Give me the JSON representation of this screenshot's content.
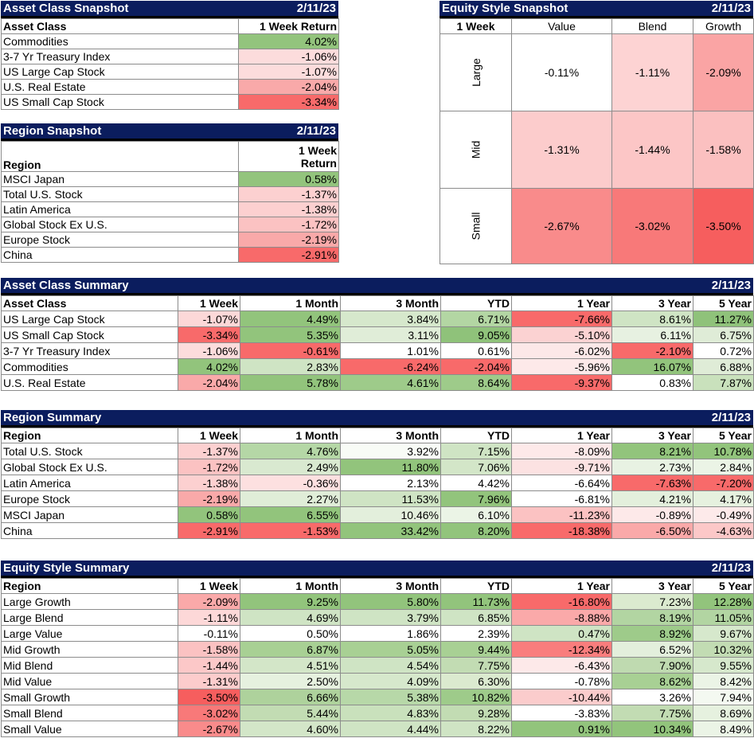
{
  "asset_snapshot": {
    "title": "Asset Class Snapshot",
    "date": "2/11/23",
    "col1": "Asset Class",
    "col2": "1 Week Return",
    "rows": [
      {
        "name": "Commodities",
        "value": "4.02%",
        "color": "#93c47d"
      },
      {
        "name": "3-7 Yr Treasury Index",
        "value": "-1.06%",
        "color": "#fcdcdc"
      },
      {
        "name": "US Large Cap Stock",
        "value": "-1.07%",
        "color": "#fcdcdc"
      },
      {
        "name": "U.S. Real Estate",
        "value": "-2.04%",
        "color": "#f9a9a9"
      },
      {
        "name": "US Small Cap Stock",
        "value": "-3.34%",
        "color": "#f86a6a"
      }
    ]
  },
  "region_snapshot": {
    "title": "Region Snapshot",
    "date": "2/11/23",
    "col1": "Region",
    "col2a": "1 Week",
    "col2b": "Return",
    "rows": [
      {
        "name": "MSCI Japan",
        "value": "0.58%",
        "color": "#93c47d"
      },
      {
        "name": "Total U.S. Stock",
        "value": "-1.37%",
        "color": "#fcd0d0"
      },
      {
        "name": "Latin America",
        "value": "-1.38%",
        "color": "#fcd0d0"
      },
      {
        "name": "Global Stock Ex U.S.",
        "value": "-1.72%",
        "color": "#fbc2c2"
      },
      {
        "name": "Europe Stock",
        "value": "-2.19%",
        "color": "#f9a9a9"
      },
      {
        "name": "China",
        "value": "-2.91%",
        "color": "#f86a6a"
      }
    ]
  },
  "equity_snapshot": {
    "title": "Equity Style Snapshot",
    "date": "2/11/23",
    "corner": "1 Week",
    "cols": [
      "Value",
      "Blend",
      "Growth"
    ],
    "rows": [
      {
        "label": "Large",
        "cells": [
          {
            "v": "-0.11%",
            "c": "#ffffff"
          },
          {
            "v": "-1.11%",
            "c": "#fdd3d3"
          },
          {
            "v": "-2.09%",
            "c": "#faa4a4"
          }
        ]
      },
      {
        "label": "Mid",
        "cells": [
          {
            "v": "-1.31%",
            "c": "#fccccc"
          },
          {
            "v": "-1.44%",
            "c": "#fcc6c6"
          },
          {
            "v": "-1.58%",
            "c": "#fbc0c0"
          }
        ]
      },
      {
        "label": "Small",
        "cells": [
          {
            "v": "-2.67%",
            "c": "#f98b8b"
          },
          {
            "v": "-3.02%",
            "c": "#f87979"
          },
          {
            "v": "-3.50%",
            "c": "#f65e5e"
          }
        ]
      }
    ]
  },
  "asset_summary": {
    "title": "Asset Class Summary",
    "date": "2/11/23",
    "headers": [
      "Asset Class",
      "1 Week",
      "1 Month",
      "3 Month",
      "YTD",
      "1 Year",
      "3 Year",
      "5 Year"
    ],
    "rows": [
      {
        "name": "US Large Cap Stock",
        "vals": [
          "-1.07%",
          "4.49%",
          "3.84%",
          "6.71%",
          "-7.66%",
          "8.61%",
          "11.27%"
        ],
        "colors": [
          "#fcd8d8",
          "#92c47c",
          "#d6e8cc",
          "#b3d6a3",
          "#f86a6a",
          "#cfe4c4",
          "#8fc27a"
        ]
      },
      {
        "name": "US Small Cap Stock",
        "vals": [
          "-3.34%",
          "5.35%",
          "3.11%",
          "9.05%",
          "-5.10%",
          "6.11%",
          "6.75%"
        ],
        "colors": [
          "#f86a6a",
          "#92c47c",
          "#e0edd8",
          "#8fc27a",
          "#fbd2d2",
          "#e7f1e1",
          "#dfecd7"
        ]
      },
      {
        "name": "3-7 Yr Treasury Index",
        "vals": [
          "-1.06%",
          "-0.61%",
          "1.01%",
          "0.61%",
          "-6.02%",
          "-2.10%",
          "0.72%"
        ],
        "colors": [
          "#fcdcdc",
          "#f86a6a",
          "#ffffff",
          "#ffffff",
          "#fce8e8",
          "#f86a6a",
          "#ffffff"
        ]
      },
      {
        "name": "Commodities",
        "vals": [
          "4.02%",
          "2.83%",
          "-6.24%",
          "-2.04%",
          "-5.96%",
          "16.07%",
          "6.88%"
        ],
        "colors": [
          "#92c47c",
          "#cfe4c4",
          "#f86a6a",
          "#f86a6a",
          "#fde9e9",
          "#92c47c",
          "#dfecd7"
        ]
      },
      {
        "name": "U.S. Real Estate",
        "vals": [
          "-2.04%",
          "5.78%",
          "4.61%",
          "8.64%",
          "-9.37%",
          "0.83%",
          "7.87%"
        ],
        "colors": [
          "#f9a9a9",
          "#92c47c",
          "#9ecb8a",
          "#9ecb8a",
          "#f86a6a",
          "#ffffff",
          "#c9e1bc"
        ]
      }
    ]
  },
  "region_summary": {
    "title": "Region Summary",
    "date": "2/11/23",
    "headers": [
      "Region",
      "1 Week",
      "1 Month",
      "3 Month",
      "YTD",
      "1 Year",
      "3 Year",
      "5 Year"
    ],
    "rows": [
      {
        "name": "Total U.S. Stock",
        "vals": [
          "-1.37%",
          "4.76%",
          "3.92%",
          "7.15%",
          "-8.09%",
          "8.21%",
          "10.78%"
        ],
        "colors": [
          "#fcd0d0",
          "#b5d7a6",
          "#f8fbf6",
          "#cfe4c4",
          "#fde9e9",
          "#92c47c",
          "#92c47c"
        ]
      },
      {
        "name": "Global Stock Ex U.S.",
        "vals": [
          "-1.72%",
          "2.49%",
          "11.80%",
          "7.06%",
          "-9.71%",
          "2.73%",
          "2.84%"
        ],
        "colors": [
          "#fbc2c2",
          "#d9e9d0",
          "#92c47c",
          "#d3e6c8",
          "#fce2e2",
          "#e8f2e3",
          "#ebf4e6"
        ]
      },
      {
        "name": "Latin America",
        "vals": [
          "-1.38%",
          "-0.36%",
          "2.13%",
          "4.42%",
          "-6.64%",
          "-7.63%",
          "-7.20%"
        ],
        "colors": [
          "#fcd0d0",
          "#fde0e0",
          "#ffffff",
          "#ffffff",
          "#ffffff",
          "#f86a6a",
          "#f86a6a"
        ]
      },
      {
        "name": "Europe Stock",
        "vals": [
          "-2.19%",
          "2.27%",
          "11.53%",
          "7.96%",
          "-6.81%",
          "4.21%",
          "4.17%"
        ],
        "colors": [
          "#f9a9a9",
          "#e0edd8",
          "#cfe4c4",
          "#92c47c",
          "#ffffff",
          "#e3efdc",
          "#e6f1df"
        ]
      },
      {
        "name": "MSCI Japan",
        "vals": [
          "0.58%",
          "6.55%",
          "10.46%",
          "6.10%",
          "-11.23%",
          "-0.89%",
          "-0.49%"
        ],
        "colors": [
          "#92c47c",
          "#92c47c",
          "#e3efdc",
          "#ebf4e6",
          "#fbc2c2",
          "#fde9e9",
          "#fdeaea"
        ]
      },
      {
        "name": "China",
        "vals": [
          "-2.91%",
          "-1.53%",
          "33.42%",
          "8.20%",
          "-18.38%",
          "-6.50%",
          "-4.63%"
        ],
        "colors": [
          "#f86a6a",
          "#f86a6a",
          "#92c47c",
          "#92c47c",
          "#f86a6a",
          "#faa9a9",
          "#fcc8c8"
        ]
      }
    ]
  },
  "equity_summary": {
    "title": "Equity Style Summary",
    "date": "2/11/23",
    "headers": [
      "Region",
      "1 Week",
      "1 Month",
      "3 Month",
      "YTD",
      "1 Year",
      "3 Year",
      "5 Year"
    ],
    "rows": [
      {
        "name": "Large Growth",
        "vals": [
          "-2.09%",
          "9.25%",
          "5.80%",
          "11.73%",
          "-16.80%",
          "7.23%",
          "12.28%"
        ],
        "colors": [
          "#faa9a9",
          "#92c47c",
          "#92c47c",
          "#92c47c",
          "#f86a6a",
          "#dbeacf",
          "#92c47c"
        ]
      },
      {
        "name": "Large Blend",
        "vals": [
          "-1.11%",
          "4.69%",
          "3.79%",
          "6.85%",
          "-8.88%",
          "8.19%",
          "11.05%"
        ],
        "colors": [
          "#fdd8d8",
          "#cfe4c4",
          "#cfe4c4",
          "#cfe4c4",
          "#faa9a9",
          "#b2d5a2",
          "#b2d5a2"
        ]
      },
      {
        "name": "Large Value",
        "vals": [
          "-0.11%",
          "0.50%",
          "1.86%",
          "2.39%",
          "0.47%",
          "8.92%",
          "9.67%"
        ],
        "colors": [
          "#ffffff",
          "#ffffff",
          "#ffffff",
          "#ffffff",
          "#cfe4c4",
          "#9ecb8a",
          "#d6e8cc"
        ]
      },
      {
        "name": "Mid Growth",
        "vals": [
          "-1.58%",
          "6.87%",
          "5.05%",
          "9.44%",
          "-12.34%",
          "6.52%",
          "10.32%"
        ],
        "colors": [
          "#fbc2c2",
          "#a8d094",
          "#a8d094",
          "#a8d094",
          "#f97d7d",
          "#e3efdc",
          "#c2dcb3"
        ]
      },
      {
        "name": "Mid Blend",
        "vals": [
          "-1.44%",
          "4.51%",
          "4.54%",
          "7.75%",
          "-6.43%",
          "7.90%",
          "9.55%"
        ],
        "colors": [
          "#fcc8c8",
          "#d3e6c8",
          "#cfe4c4",
          "#c2dcb3",
          "#fde9e9",
          "#bfdab0",
          "#d6e8cc"
        ]
      },
      {
        "name": "Mid Value",
        "vals": [
          "-1.31%",
          "2.50%",
          "4.09%",
          "6.30%",
          "-0.78%",
          "8.62%",
          "8.42%"
        ],
        "colors": [
          "#fccccc",
          "#e6f1df",
          "#d6e8cc",
          "#dbeacf",
          "#ffffff",
          "#a8d094",
          "#ebf4e6"
        ]
      },
      {
        "name": "Small Growth",
        "vals": [
          "-3.50%",
          "6.66%",
          "5.38%",
          "10.82%",
          "-10.44%",
          "3.26%",
          "7.94%"
        ],
        "colors": [
          "#f65e5e",
          "#aed29c",
          "#b7d8a8",
          "#9ecb8a",
          "#fbcccc",
          "#ffffff",
          "#f4f9f1"
        ]
      },
      {
        "name": "Small Blend",
        "vals": [
          "-3.02%",
          "5.44%",
          "4.83%",
          "9.28%",
          "-3.83%",
          "7.75%",
          "8.69%"
        ],
        "colors": [
          "#f87979",
          "#c2dcb3",
          "#c9e1bc",
          "#c2dcb3",
          "#ffffff",
          "#c2dcb3",
          "#e6f1df"
        ]
      },
      {
        "name": "Small Value",
        "vals": [
          "-2.67%",
          "4.60%",
          "4.44%",
          "8.22%",
          "0.91%",
          "10.34%",
          "8.49%"
        ],
        "colors": [
          "#f98b8b",
          "#d3e6c8",
          "#cfe4c4",
          "#cfe4c4",
          "#92c47c",
          "#92c47c",
          "#ebf4e6"
        ]
      }
    ]
  }
}
